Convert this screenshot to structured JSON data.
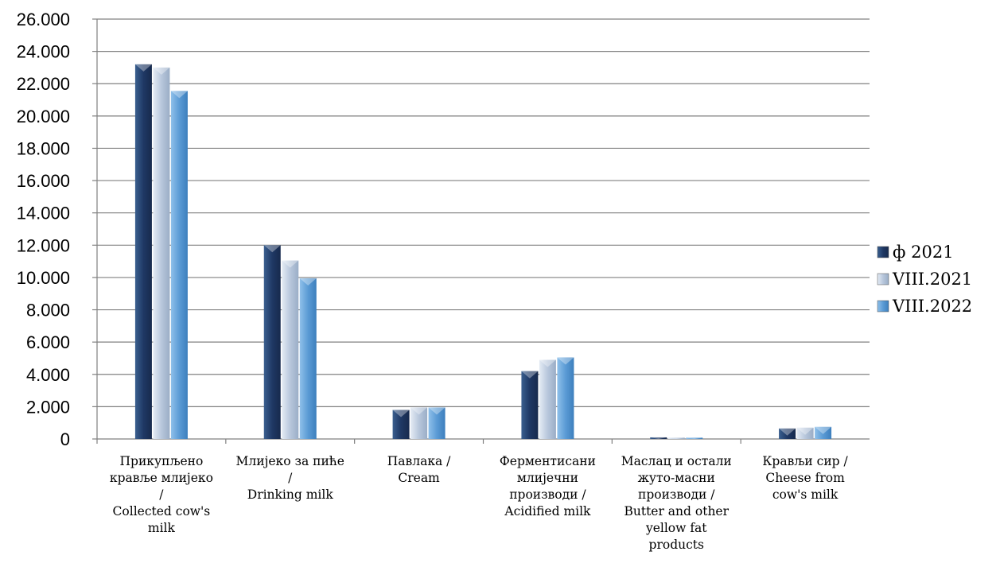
{
  "chart_data": {
    "type": "bar",
    "title": "",
    "xlabel": "",
    "ylabel": "",
    "ylim": [
      0,
      26000
    ],
    "ytick_step": 2000,
    "ytick_labels": [
      "0",
      "2.000",
      "4.000",
      "6.000",
      "8.000",
      "10.000",
      "12.000",
      "14.000",
      "16.000",
      "18.000",
      "20.000",
      "22.000",
      "24.000",
      "26.000"
    ],
    "grid": true,
    "legend_position": "right",
    "categories": [
      [
        "Прикупљено",
        "крављe млијеко",
        "/",
        "Collected cow's",
        "milk"
      ],
      [
        "Млијеко за пиће",
        "/",
        "Drinking milk"
      ],
      [
        "Павлака /",
        "Cream"
      ],
      [
        "Ферментисани",
        "млијечни",
        "производи /",
        "Acidified milk"
      ],
      [
        "Маслац и остали",
        "жуто-масни",
        "производи /",
        "Butter and other",
        "yellow fat",
        "products"
      ],
      [
        "Крављи сир /",
        "Cheese from",
        "cow's milk"
      ]
    ],
    "series": [
      {
        "name": "ф 2021",
        "color": "#1f3864",
        "values": [
          23200,
          12000,
          1800,
          4200,
          100,
          650
        ]
      },
      {
        "name": "VIII.2021",
        "color": "#b8c7dc",
        "values": [
          23000,
          11050,
          1950,
          4900,
          80,
          700
        ]
      },
      {
        "name": "VIII.2022",
        "color": "#5b9bd5",
        "values": [
          21550,
          9950,
          1950,
          5050,
          80,
          750
        ]
      }
    ]
  }
}
